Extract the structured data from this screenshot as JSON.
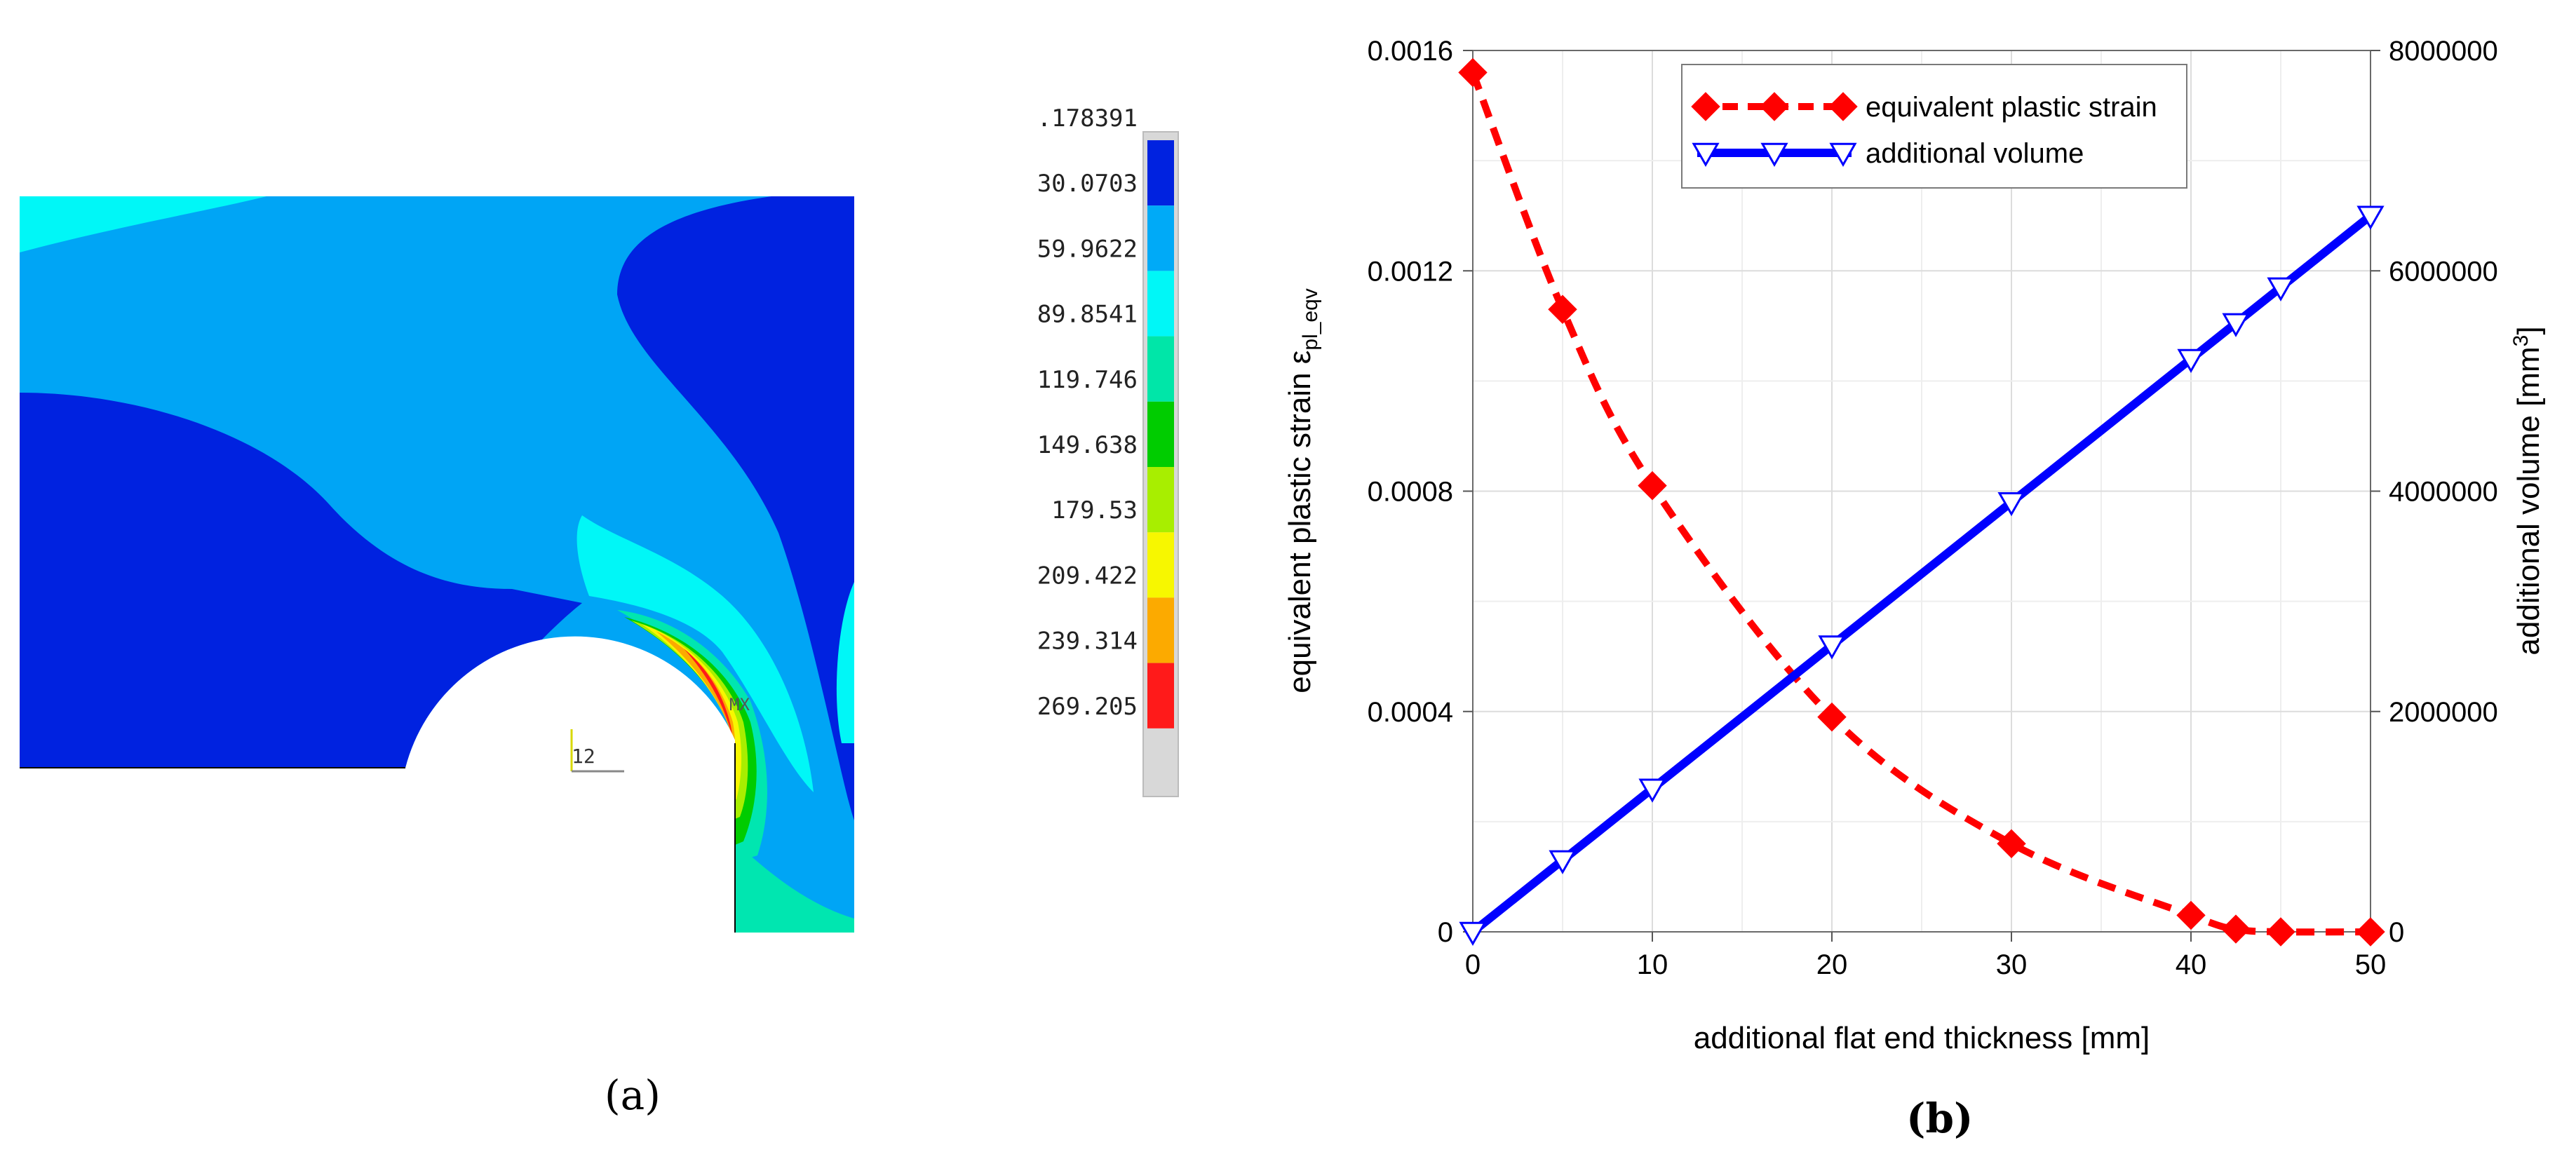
{
  "panel_a": {
    "caption": "(a)",
    "node_label": "12",
    "max_label": "MX",
    "legend": {
      "values": [
        ".178391",
        "30.0703",
        "59.9622",
        "89.8541",
        "119.746",
        "149.638",
        "179.53",
        "209.422",
        "239.314",
        "269.205"
      ],
      "colors": [
        "#0022e0",
        "#00aaf7",
        "#00f7f7",
        "#00e6a8",
        "#00cc00",
        "#a8ee00",
        "#f7f700",
        "#fcaa00",
        "#ff1a1a"
      ]
    },
    "contour_colors": {
      "dark_blue": "#0022e0",
      "medium_blue": "#00a5f5",
      "cyan": "#00f7f7",
      "aqua": "#00e6b0",
      "green": "#00cc00",
      "yellow_green": "#a8ee00",
      "yellow": "#f7f700",
      "orange": "#fcaa00",
      "red": "#ff1a1a"
    }
  },
  "panel_b": {
    "caption": "(b)"
  },
  "chart_data": {
    "type": "line",
    "xlabel": "additional flat end thickness [mm]",
    "ylabel_left": "equivalent plastic strain ε",
    "ylabel_left_sub": "pl_eqv",
    "ylabel_right": "additional volume [mm",
    "ylabel_right_sup": "3",
    "ylabel_right_end": "]",
    "xlim": [
      0,
      50
    ],
    "ylim_left": [
      0,
      0.0016
    ],
    "ylim_right": [
      0,
      8000000
    ],
    "x_ticks": [
      0,
      10,
      20,
      30,
      40,
      50
    ],
    "y_left_ticks": [
      0,
      0.0004,
      0.0008,
      0.0012,
      0.0016
    ],
    "y_left_tick_labels": [
      "0",
      "0.0004",
      "0.0008",
      "0.0012",
      "0.0016"
    ],
    "y_right_ticks": [
      0,
      2000000,
      4000000,
      6000000,
      8000000
    ],
    "y_right_tick_labels": [
      "0",
      "2000000",
      "4000000",
      "6000000",
      "8000000"
    ],
    "grid": true,
    "legend_position": "top-center",
    "series": [
      {
        "name": "equivalent plastic strain",
        "axis": "left",
        "color": "#ff0000",
        "line": "dashed",
        "marker": "diamond",
        "x": [
          0,
          5,
          10,
          20,
          30,
          40,
          42.5,
          45,
          50
        ],
        "y": [
          0.00156,
          0.00113,
          0.00081,
          0.00039,
          0.00016,
          3e-05,
          5e-06,
          0.0,
          0.0
        ]
      },
      {
        "name": "additional volume",
        "axis": "right",
        "color": "#0000ff",
        "line": "solid",
        "marker": "triangle-down",
        "x": [
          0,
          5,
          10,
          20,
          30,
          40,
          42.5,
          45,
          50
        ],
        "y": [
          0,
          650000,
          1300000,
          2600000,
          3900000,
          5200000,
          5525000,
          5850000,
          6500000
        ]
      }
    ]
  }
}
